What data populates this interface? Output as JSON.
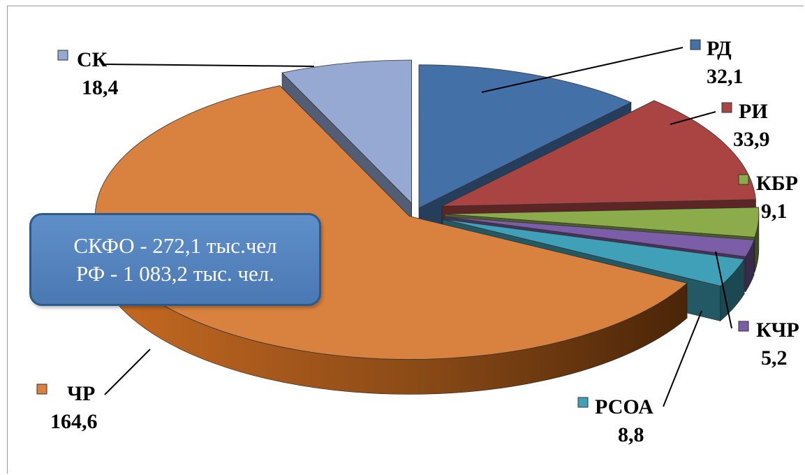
{
  "chart_data": {
    "type": "pie",
    "title": "",
    "slices": [
      {
        "label": "РД",
        "value": 32.1,
        "value_text": "32,1",
        "color": "#4470a8"
      },
      {
        "label": "РИ",
        "value": 33.9,
        "value_text": "33,9",
        "color": "#a94442"
      },
      {
        "label": "КБР",
        "value": 9.1,
        "value_text": "9,1",
        "color": "#8cab4a"
      },
      {
        "label": "КЧР",
        "value": 5.2,
        "value_text": "5,2",
        "color": "#7b5ea7"
      },
      {
        "label": "РСОА",
        "value": 8.8,
        "value_text": "8,8",
        "color": "#3fa0b8"
      },
      {
        "label": "ЧР",
        "value": 164.6,
        "value_text": "164,6",
        "color": "#d9813e"
      },
      {
        "label": "СК",
        "value": 18.4,
        "value_text": "18,4",
        "color": "#96a9d2"
      }
    ],
    "annotation": {
      "line1": "СКФО - 272,1 тыс.чел",
      "line2": "РФ - 1 083,2 тыс. чел."
    }
  }
}
